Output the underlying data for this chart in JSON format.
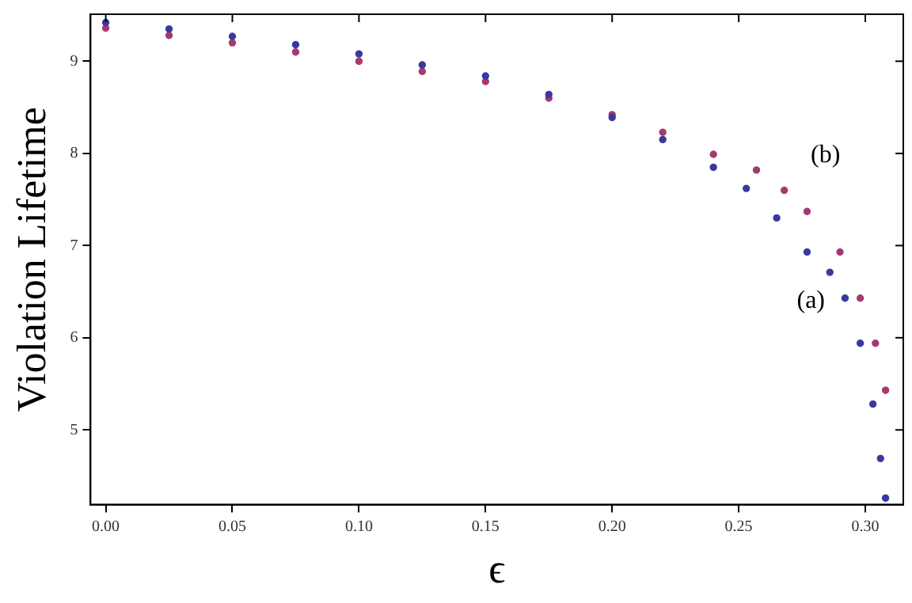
{
  "chart_data": {
    "type": "scatter",
    "xlabel": "ϵ",
    "ylabel": "Violation Lifetime",
    "xlim": [
      -0.006,
      0.315
    ],
    "ylim": [
      4.19,
      9.51
    ],
    "xticks": [
      {
        "value": 0,
        "label": "0.00"
      },
      {
        "value": 0.05,
        "label": "0.05"
      },
      {
        "value": 0.1,
        "label": "0.10"
      },
      {
        "value": 0.15,
        "label": "0.15"
      },
      {
        "value": 0.2,
        "label": "0.20"
      },
      {
        "value": 0.25,
        "label": "0.25"
      },
      {
        "value": 0.3,
        "label": "0.30"
      }
    ],
    "yticks": [
      5,
      6,
      7,
      8,
      9
    ],
    "grid": false,
    "marker": "circle",
    "legend": false,
    "series": [
      {
        "name": "(a)",
        "color": "#3a3a9e",
        "x": [
          0,
          0.025,
          0.05,
          0.075,
          0.1,
          0.125,
          0.15,
          0.175,
          0.2,
          0.22,
          0.24,
          0.253,
          0.265,
          0.277,
          0.286,
          0.292,
          0.298,
          0.303,
          0.306,
          0.308
        ],
        "values": [
          9.42,
          9.35,
          9.27,
          9.18,
          9.08,
          8.96,
          8.84,
          8.64,
          8.39,
          8.15,
          7.85,
          7.62,
          7.3,
          6.93,
          6.71,
          6.43,
          5.94,
          5.28,
          4.69,
          4.26
        ]
      },
      {
        "name": "(b)",
        "color": "#a33a70",
        "x": [
          0,
          0.025,
          0.05,
          0.075,
          0.1,
          0.125,
          0.15,
          0.175,
          0.2,
          0.22,
          0.24,
          0.257,
          0.268,
          0.277,
          0.29,
          0.298,
          0.304,
          0.308
        ],
        "values": [
          9.36,
          9.28,
          9.2,
          9.1,
          9.0,
          8.89,
          8.78,
          8.6,
          8.42,
          8.23,
          7.99,
          7.82,
          7.6,
          7.37,
          6.93,
          6.43,
          5.94,
          5.43
        ]
      }
    ]
  }
}
